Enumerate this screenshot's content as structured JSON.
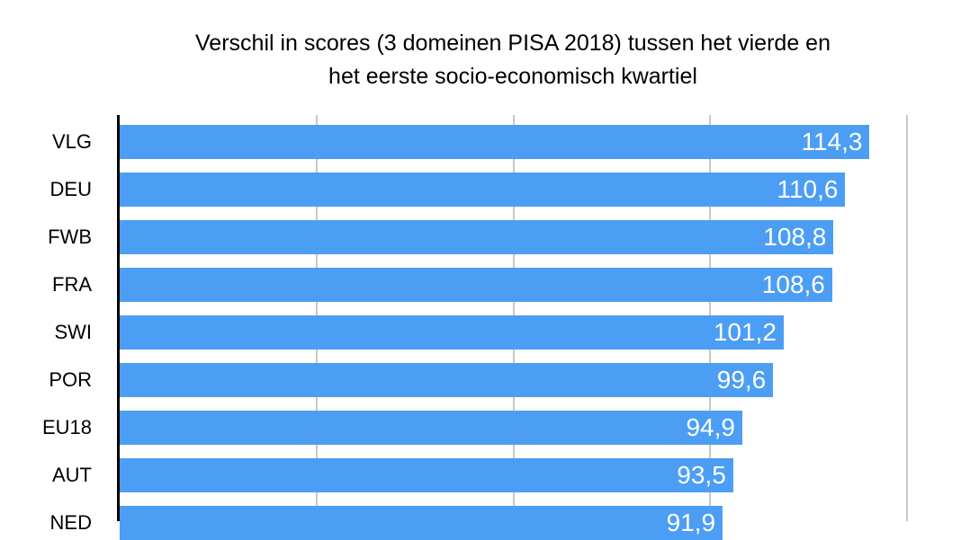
{
  "chart_data": {
    "type": "bar",
    "orientation": "horizontal",
    "title": "Verschil in scores (3 domeinen PISA 2018) tussen het vierde en het eerste socio-economisch kwartiel",
    "title_lines": [
      "Verschil in scores (3 domeinen PISA 2018) tussen het vierde en",
      "het eerste socio-economisch kwartiel"
    ],
    "categories": [
      "VLG",
      "DEU",
      "FWB",
      "FRA",
      "SWI",
      "POR",
      "EU18",
      "AUT",
      "NED"
    ],
    "values": [
      114.3,
      110.6,
      108.8,
      108.6,
      101.2,
      99.6,
      94.9,
      93.5,
      91.9
    ],
    "value_labels": [
      "114,3",
      "110,6",
      "108,8",
      "108,6",
      "101,2",
      "99,6",
      "94,9",
      "93,5",
      "91,9"
    ],
    "xlim": [
      0,
      120
    ],
    "gridline_step": 30,
    "x_tick_labels_visible": false,
    "legend": "none",
    "grid": "vertical gridlines on",
    "colors": {
      "bar": "#4C9EF4",
      "value_text": "#FFFFFF",
      "category_text": "#000000",
      "title_text": "#000000",
      "gridline": "#C8C8C8",
      "axis": "#000000",
      "background": "#FFFFFF"
    }
  }
}
